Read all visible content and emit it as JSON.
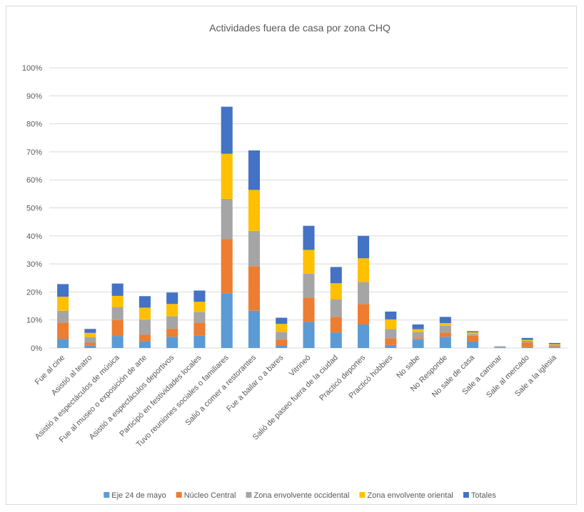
{
  "chart_data": {
    "type": "bar",
    "stacked": true,
    "title": "Actividades fuera de casa por zona CHQ",
    "xlabel": "",
    "ylabel": "",
    "ylim": [
      0,
      100
    ],
    "y_ticks": [
      "0%",
      "10%",
      "20%",
      "30%",
      "40%",
      "50%",
      "60%",
      "70%",
      "80%",
      "90%",
      "100%"
    ],
    "grid": true,
    "legend_position": "bottom",
    "categories": [
      "Fue al cine",
      "Asistió al teatro",
      "Asistió a espectáculos de música",
      "Fue al museo o exposición de arte",
      "Asistió a espectáculos deportivos",
      "Participó en festividades locales",
      "Tuvo reuniones sociales o familiares",
      "Salió a comer a restorantes",
      "Fue a bailar o a bares",
      "Vitrineó",
      "Salió de paseo fuera de la ciudad",
      "Practicó deportes",
      "Practicó hobbies",
      "No sabe",
      "No Responde",
      "No sale de casa",
      "Sale a caminar",
      "Sale al mercado",
      "Sale a la iglesia"
    ],
    "series": [
      {
        "name": "Eje 24 de mayo",
        "color": "#5b9bd5",
        "values": [
          3.2,
          0.8,
          4.3,
          2.4,
          4.0,
          4.5,
          19.5,
          13.3,
          0.9,
          9.3,
          5.5,
          8.4,
          1.1,
          3.0,
          4.0,
          2.3,
          0.3,
          0.3,
          0.2
        ]
      },
      {
        "name": "Núcleo Central",
        "color": "#ed7d31",
        "values": [
          5.9,
          1.1,
          5.7,
          2.3,
          2.9,
          4.5,
          19.3,
          15.9,
          2.1,
          8.7,
          5.6,
          7.3,
          2.4,
          0.5,
          1.5,
          2.1,
          0.0,
          1.7,
          0.3
        ]
      },
      {
        "name": "Zona envolvente occidental",
        "color": "#a5a5a5",
        "values": [
          4.2,
          2.0,
          4.5,
          5.4,
          4.4,
          3.9,
          14.4,
          12.6,
          2.7,
          8.5,
          6.2,
          7.8,
          3.3,
          2.2,
          2.4,
          0.6,
          0.1,
          0.6,
          0.6
        ]
      },
      {
        "name": "Zona envolvente oriental",
        "color": "#ffc000",
        "values": [
          5.0,
          1.5,
          4.1,
          4.3,
          4.4,
          3.6,
          16.1,
          14.6,
          2.9,
          8.5,
          5.8,
          8.5,
          3.4,
          1.0,
          1.0,
          0.6,
          0.1,
          0.3,
          0.3
        ]
      },
      {
        "name": "Totales",
        "color": "#4472c4",
        "values": [
          4.5,
          1.4,
          4.4,
          4.1,
          4.1,
          4.0,
          16.8,
          14.1,
          2.2,
          8.6,
          5.8,
          8.0,
          2.8,
          1.7,
          2.2,
          0.4,
          0.1,
          0.7,
          0.4
        ]
      }
    ]
  }
}
